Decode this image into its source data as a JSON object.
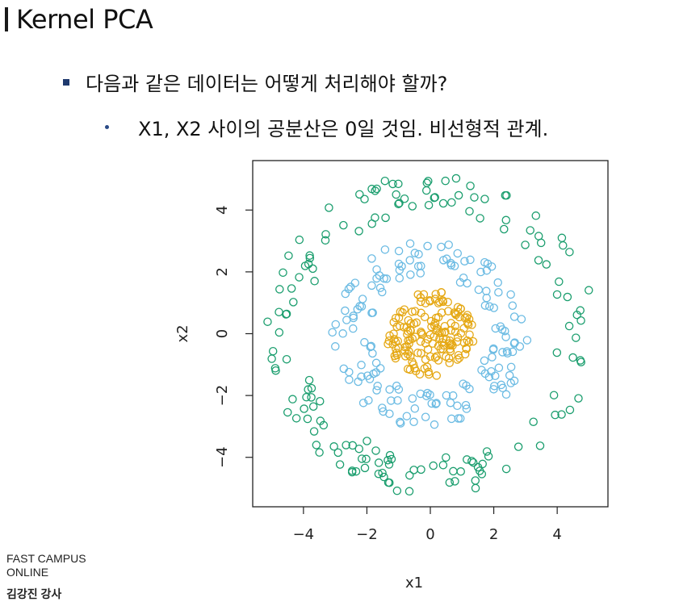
{
  "slide": {
    "title": "Kernel PCA",
    "bullet1": "다음과 같은 데이터는 어떻게 처리해야 할까?",
    "bullet2": "X1, X2 사이의 공분산은 0일 것임. 비선형적 관계."
  },
  "footer": {
    "line1": "FAST CAMPUS",
    "line2": "ONLINE",
    "name": "김강진 강사"
  },
  "chart_data": {
    "type": "scatter",
    "title": "",
    "xlabel": "x1",
    "ylabel": "x2",
    "xlim": [
      -5.6,
      5.6
    ],
    "ylim": [
      -5.6,
      5.6
    ],
    "xticks": [
      -4,
      -2,
      0,
      2,
      4
    ],
    "yticks": [
      -4,
      -2,
      0,
      2,
      4
    ],
    "grid": false,
    "legend": "none",
    "series": [
      {
        "color": "#1b9e6e",
        "radius_range": [
          4.0,
          5.2
        ],
        "n_points": 160
      },
      {
        "color": "#6bbbe3",
        "radius_range": [
          1.9,
          3.1
        ],
        "n_points": 160
      },
      {
        "color": "#e5a814",
        "radius_range": [
          0.0,
          1.4
        ],
        "n_points": 160
      }
    ]
  }
}
